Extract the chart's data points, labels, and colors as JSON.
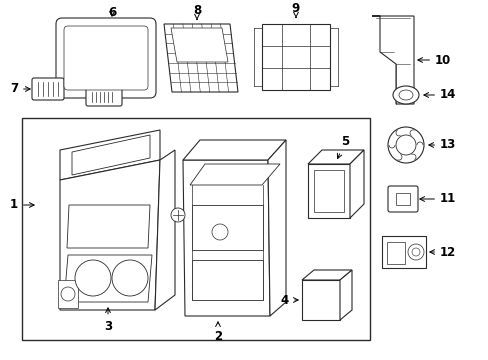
{
  "bg_color": "#ffffff",
  "line_color": "#2a2a2a",
  "fig_width": 4.89,
  "fig_height": 3.6,
  "dpi": 100,
  "font_size": 8.5
}
